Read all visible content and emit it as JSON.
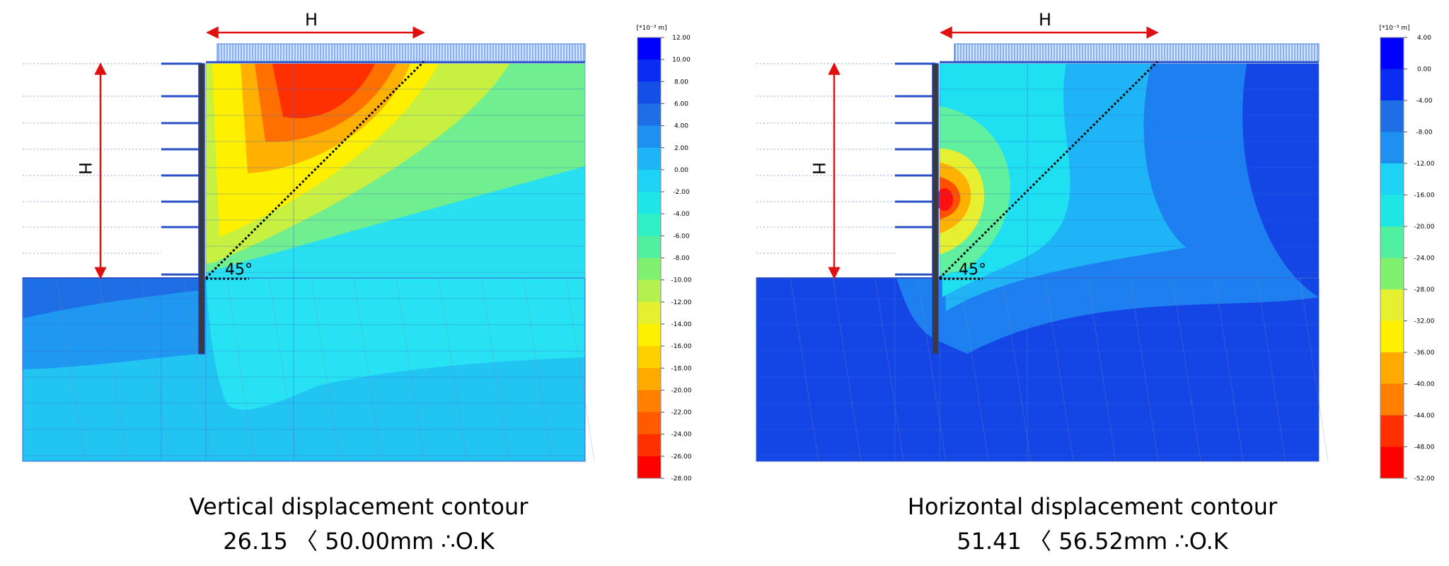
{
  "panels": [
    {
      "h_label_top": "H",
      "h_label_side": "H",
      "angle_label": "45°",
      "colorbar": {
        "unit": "[*10⁻³ m]",
        "ticks": [
          "12.00",
          "10.00",
          "8.00",
          "6.00",
          "4.00",
          "2.00",
          "0.00",
          "-2.00",
          "-4.00",
          "-6.00",
          "-8.00",
          "-10.00",
          "-12.00",
          "-14.00",
          "-16.00",
          "-18.00",
          "-20.00",
          "-22.00",
          "-24.00",
          "-26.00",
          "-28.00"
        ]
      },
      "caption": {
        "title": "Vertical displacement contour",
        "result": "26.15 〈 50.00mm ∴O.K"
      }
    },
    {
      "h_label_top": "H",
      "h_label_side": "H",
      "angle_label": "45°",
      "colorbar": {
        "unit": "[*10⁻³ m]",
        "ticks": [
          "4.00",
          "0.00",
          "-4.00",
          "-8.00",
          "-12.00",
          "-16.00",
          "-20.00",
          "-24.00",
          "-28.00",
          "-32.00",
          "-36.00",
          "-40.00",
          "-44.00",
          "-48.00",
          "-52.00"
        ]
      },
      "caption": {
        "title": "Horizontal displacement contour",
        "result": "51.41 〈 56.52mm ∴O.K"
      }
    }
  ]
}
